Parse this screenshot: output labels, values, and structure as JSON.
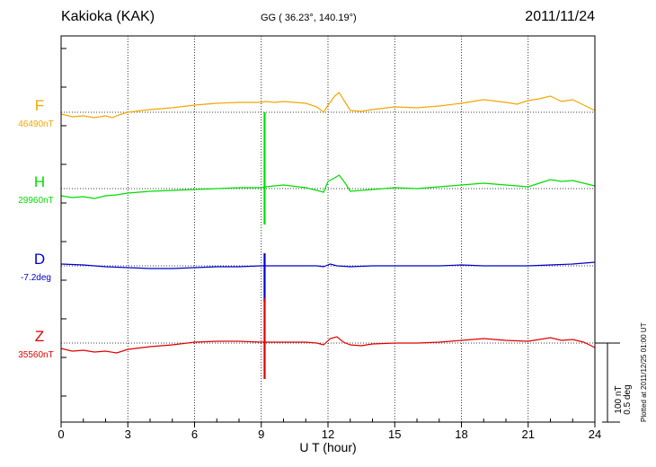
{
  "header": {
    "station": "Kakioka (KAK)",
    "coords": "GG ( 36.23°, 140.19°)",
    "date": "2011/11/24"
  },
  "plotted_note": "Plotted at 2011/12/25 01:00 UT",
  "scale_labels": [
    "100 nT",
    "0.5 deg"
  ],
  "chart_data": {
    "type": "line",
    "xlabel": "U T (hour)",
    "xlim": [
      0,
      24
    ],
    "xticks": [
      0,
      3,
      6,
      9,
      12,
      15,
      18,
      21,
      24
    ],
    "grid": true,
    "series": [
      {
        "name": "F",
        "baseline_label": "46490nT",
        "color": "#f0a800",
        "baseline": 46490,
        "x": [
          0,
          0.5,
          1,
          1.5,
          2,
          2.3,
          2.6,
          3,
          4,
          5,
          6,
          7,
          8,
          9,
          9.2,
          9.6,
          10,
          11,
          11.5,
          11.8,
          12,
          12.3,
          12.5,
          12.8,
          13,
          13.5,
          14,
          15,
          16,
          17,
          18,
          19,
          20,
          20.5,
          21,
          21.5,
          22,
          22.5,
          23,
          23.5,
          24
        ],
        "values": [
          -2,
          -5,
          -4,
          -6,
          -4,
          -6,
          -3,
          0,
          3,
          5,
          8,
          10,
          11,
          11,
          12,
          11,
          12,
          10,
          6,
          0,
          8,
          18,
          22,
          10,
          2,
          1,
          3,
          6,
          5,
          7,
          10,
          14,
          11,
          9,
          13,
          15,
          18,
          12,
          14,
          8,
          2
        ]
      },
      {
        "name": "H",
        "baseline_label": "29960nT",
        "color": "#00dd00",
        "baseline": 29960,
        "x": [
          0,
          0.5,
          1,
          1.5,
          2,
          2.5,
          3,
          4,
          5,
          6,
          7,
          8,
          9,
          9.2,
          9.6,
          10,
          11,
          11.5,
          11.8,
          12,
          12.3,
          12.5,
          12.8,
          13,
          14,
          15,
          16,
          17,
          18,
          19,
          20,
          21,
          21.5,
          22,
          22.5,
          23,
          23.5,
          24
        ],
        "values": [
          -8,
          -10,
          -9,
          -11,
          -8,
          -7,
          -5,
          -3,
          -2,
          -1,
          0,
          1,
          1,
          2,
          3,
          4,
          1,
          -2,
          -4,
          8,
          12,
          15,
          5,
          -3,
          -1,
          1,
          0,
          2,
          4,
          6,
          4,
          2,
          6,
          10,
          8,
          9,
          6,
          3
        ]
      },
      {
        "name": "D",
        "baseline_label": "-7.2deg",
        "color": "#0000cc",
        "baseline": -7.2,
        "x": [
          0,
          1,
          2,
          3,
          4,
          5,
          6,
          7,
          8,
          9,
          10,
          11,
          11.5,
          11.8,
          12.1,
          12.4,
          13,
          14,
          15,
          16,
          17,
          18,
          19,
          20,
          21,
          22,
          23,
          24
        ],
        "values": [
          2,
          1,
          -1,
          -2,
          -3,
          -3,
          -2,
          -1,
          -1,
          0,
          0,
          0,
          0,
          -1,
          2,
          0,
          -1,
          0,
          0,
          0,
          0,
          1,
          0,
          0,
          0,
          1,
          2,
          4
        ]
      },
      {
        "name": "Z",
        "baseline_label": "35560nT",
        "color": "#dd0000",
        "baseline": 35560,
        "x": [
          0,
          0.5,
          1,
          1.5,
          2,
          2.5,
          3,
          4,
          5,
          6,
          7,
          8,
          9,
          10,
          11,
          11.5,
          11.8,
          12.1,
          12.4,
          12.7,
          13,
          13.5,
          14,
          15,
          16,
          17,
          18,
          19,
          20,
          21,
          21.5,
          22,
          22.5,
          23,
          23.5,
          24
        ],
        "values": [
          -6,
          -9,
          -8,
          -10,
          -9,
          -11,
          -7,
          -4,
          -2,
          1,
          2,
          2,
          1,
          1,
          1,
          0,
          -2,
          5,
          7,
          1,
          -2,
          -3,
          -1,
          0,
          0,
          1,
          3,
          5,
          3,
          2,
          4,
          6,
          3,
          4,
          1,
          -5
        ]
      }
    ],
    "spikes": [
      {
        "series": "H",
        "x": 9.15,
        "values": [
          85,
          -40
        ]
      },
      {
        "series": "D",
        "x": 9.15,
        "values": [
          14,
          -40
        ]
      },
      {
        "series": "Z",
        "x": 9.15,
        "values": [
          50,
          -40
        ]
      }
    ]
  }
}
